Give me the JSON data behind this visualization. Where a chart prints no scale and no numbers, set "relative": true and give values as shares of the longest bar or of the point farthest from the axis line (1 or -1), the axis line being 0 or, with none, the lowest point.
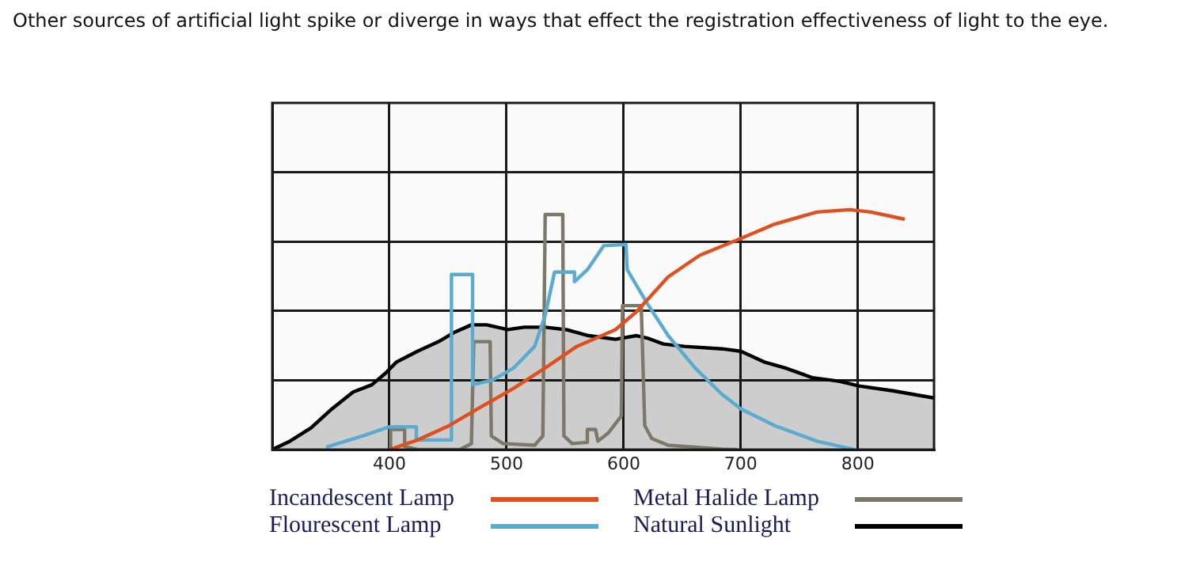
{
  "chart_data": {
    "type": "line",
    "title": "Other sources of artificial light spike or diverge in ways that effect the registration effectiveness of light to the eye.",
    "relative": true,
    "xlim": [
      300,
      865
    ],
    "xticks": [
      400,
      500,
      600,
      700,
      800
    ],
    "grid": true,
    "legend": "bottom",
    "marker": "none",
    "line_style": "solid",
    "series": [
      {
        "name": "Natural Sunlight",
        "type": "area",
        "color": "#000000",
        "x": [
          300,
          315,
          333,
          351,
          369,
          385,
          397,
          406,
          424,
          442,
          456,
          470,
          483,
          501,
          515,
          533,
          551,
          570,
          593,
          611,
          620,
          634,
          652,
          684,
          700,
          720,
          738,
          761,
          784,
          801,
          830,
          865
        ],
        "values": [
          0,
          0.035,
          0.09,
          0.17,
          0.24,
          0.27,
          0.32,
          0.365,
          0.41,
          0.45,
          0.49,
          0.52,
          0.52,
          0.5,
          0.51,
          0.51,
          0.5,
          0.475,
          0.46,
          0.475,
          0.465,
          0.44,
          0.43,
          0.42,
          0.41,
          0.365,
          0.34,
          0.3,
          0.285,
          0.265,
          0.245,
          0.215
        ]
      },
      {
        "name": "Incandescent Lamp",
        "color": "#e0501e",
        "x": [
          400,
          424,
          451,
          479,
          506,
          533,
          560,
          593,
          611,
          638,
          665,
          700,
          729,
          765,
          793,
          811,
          840
        ],
        "values": [
          0,
          0.04,
          0.1,
          0.18,
          0.255,
          0.34,
          0.43,
          0.5,
          0.575,
          0.72,
          0.81,
          0.88,
          0.94,
          0.99,
          1,
          0.99,
          0.96
        ]
      },
      {
        "name": "Flourescent Lamp",
        "color": "#5aabd0",
        "x": [
          346,
          379,
          400,
          423,
          423,
          453,
          453,
          471,
          471,
          488,
          506,
          524,
          533,
          541,
          558,
          558,
          569,
          583,
          602,
          603,
          620,
          638,
          661,
          684,
          700,
          729,
          765,
          797
        ],
        "values": [
          0.01,
          0.06,
          0.095,
          0.095,
          0.04,
          0.04,
          0.73,
          0.73,
          0.27,
          0.29,
          0.34,
          0.43,
          0.56,
          0.74,
          0.74,
          0.7,
          0.75,
          0.85,
          0.855,
          0.75,
          0.61,
          0.475,
          0.34,
          0.23,
          0.17,
          0.1,
          0.035,
          0
        ]
      },
      {
        "name": "Metal Halide Lamp",
        "color": "#7d7868",
        "x": [
          401,
          401,
          413,
          413,
          424,
          460,
          470,
          472,
          486,
          487,
          497,
          524,
          531,
          533,
          548,
          549,
          556,
          569,
          569,
          576,
          578,
          587,
          598,
          599,
          615,
          618,
          624,
          638,
          684,
          697
        ],
        "values": [
          0,
          0.084,
          0.084,
          0.013,
          0,
          0,
          0.025,
          0.45,
          0.45,
          0.057,
          0.025,
          0.018,
          0.057,
          0.98,
          0.98,
          0.057,
          0.025,
          0.03,
          0.084,
          0.084,
          0.035,
          0.07,
          0.14,
          0.6,
          0.6,
          0.1,
          0.046,
          0.018,
          0.002,
          0
        ]
      }
    ]
  }
}
